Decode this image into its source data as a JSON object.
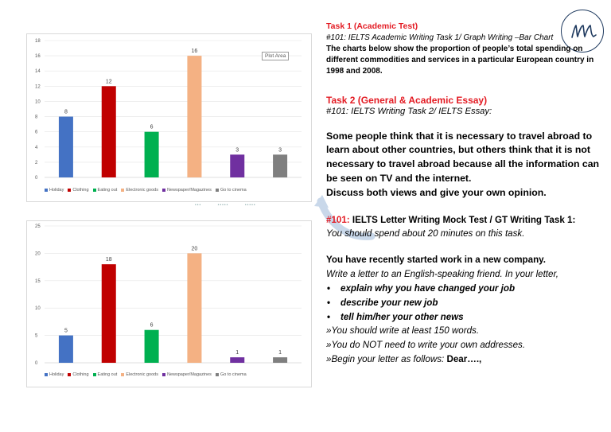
{
  "charts": [
    {
      "plot_area_label": "Plot Area",
      "legend": [
        "Holiday",
        "Clothing",
        "Eating out",
        "Electronic goods",
        "Newspaper/Magazines",
        "Go to cinema"
      ],
      "handles": [
        "•••",
        "•••••",
        "•••••"
      ]
    },
    {
      "legend": [
        "Holiday",
        "Clothing",
        "Eating out",
        "Electronic goods",
        "Newspaper/Magazines",
        "Go to cinema"
      ]
    }
  ],
  "chart_data": [
    {
      "type": "bar",
      "categories": [
        "Holiday",
        "Clothing",
        "Eating out",
        "Electronic goods",
        "Newspaper/Magazines",
        "Go to cinema"
      ],
      "values": [
        8,
        12,
        6,
        16,
        3,
        3
      ],
      "ylim": [
        0,
        18
      ],
      "yticks": [
        0,
        2,
        4,
        6,
        8,
        10,
        12,
        14,
        16,
        18
      ],
      "colors": [
        "#4472c4",
        "#c00000",
        "#00b050",
        "#f4b183",
        "#7030a0",
        "#7f7f7f"
      ],
      "grid": true,
      "legend_position": "bottom-left"
    },
    {
      "type": "bar",
      "categories": [
        "Holiday",
        "Clothing",
        "Eating out",
        "Electronic goods",
        "Newspaper/Magazines",
        "Go to cinema"
      ],
      "values": [
        5,
        18,
        6,
        20,
        1,
        1
      ],
      "ylim": [
        0,
        25
      ],
      "yticks": [
        0,
        5,
        10,
        15,
        20,
        25
      ],
      "colors": [
        "#4472c4",
        "#c00000",
        "#00b050",
        "#f4b183",
        "#7030a0",
        "#7f7f7f"
      ],
      "grid": true,
      "legend_position": "bottom-left"
    }
  ],
  "task1": {
    "heading": "Task 1 (Academic Test)",
    "subtitle": "#101: IELTS Academic Writing Task 1/ Graph Writing –Bar Chart",
    "description": "The charts below show the proportion of people’s total spending on different commodities and services in a particular European country in 1998 and 2008."
  },
  "task2": {
    "heading": "Task 2 (General & Academic Essay)",
    "subtitle": "#101: IELTS Writing Task 2/ IELTS Essay:",
    "essay_prompt": "Some people think that it is necessary to travel abroad to learn about other countries, but others think that it is not necessary to travel abroad because all the information can be seen on TV and the internet.",
    "essay_instruction": "Discuss both views and give your own opinion."
  },
  "task3": {
    "number": "#101:",
    "heading": " IELTS Letter Writing Mock Test / GT Writing Task 1:",
    "time_note": "You should spend about 20 minutes on this task.",
    "situation": "You have recently started work in a new company.",
    "instruction": "Write a letter to an English-speaking friend. In your letter,",
    "bullets": [
      "explain why you have changed your job",
      "describe your new job",
      "tell him/her your other news"
    ],
    "notes": [
      "»You should write at least 150 words.",
      "»You do NOT need to write your own addresses."
    ],
    "begin_prefix": "»Begin your letter as follows: ",
    "begin_salutation": "Dear….,"
  },
  "logo": {
    "icon": "signature-m-logo",
    "color": "#1f3a5f"
  }
}
